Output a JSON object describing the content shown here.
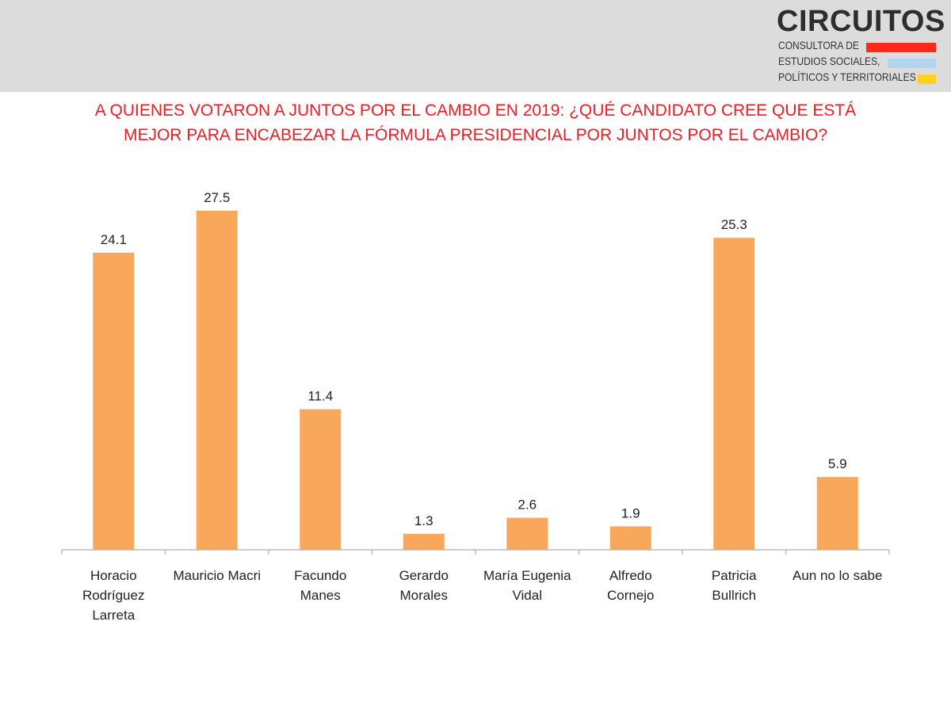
{
  "logo": {
    "title": "CIRCUITOS",
    "lines": [
      "CONSULTORA DE",
      "ESTUDIOS SOCIALES,",
      "POLÍTICOS Y TERRITORIALES"
    ],
    "bar_colors": [
      "#ff2a1a",
      "#b3d4ef",
      "#ffd21f"
    ]
  },
  "header_color": "#dcdcdc",
  "chart_data": {
    "type": "bar",
    "title_lines": [
      "A QUIENES VOTARON A JUNTOS POR EL CAMBIO EN 2019: ¿QUÉ CANDIDATO CREE QUE ESTÁ",
      "MEJOR PARA ENCABEZAR LA FÓRMULA PRESIDENCIAL POR JUNTOS POR EL CAMBIO?"
    ],
    "title_color": "#ee1c25",
    "categories": [
      [
        "Horacio",
        "Rodríguez",
        "Larreta"
      ],
      [
        "Mauricio Macri"
      ],
      [
        "Facundo",
        "Manes"
      ],
      [
        "Gerardo",
        "Morales"
      ],
      [
        "María Eugenia",
        "Vidal"
      ],
      [
        "Alfredo",
        "Cornejo"
      ],
      [
        "Patricia",
        "Bullrich"
      ],
      [
        "Aun no lo sabe"
      ]
    ],
    "values": [
      24.1,
      27.5,
      11.4,
      1.3,
      2.6,
      1.9,
      25.3,
      5.9
    ],
    "value_labels": [
      "24.1",
      "27.5",
      "11.4",
      "1.3",
      "2.6",
      "1.9",
      "25.3",
      "5.9"
    ],
    "bar_color": "#f9a75a",
    "axis_color": "#bbbbbb",
    "ylim": [
      0,
      27.5
    ],
    "grid": false,
    "legend": "none"
  }
}
